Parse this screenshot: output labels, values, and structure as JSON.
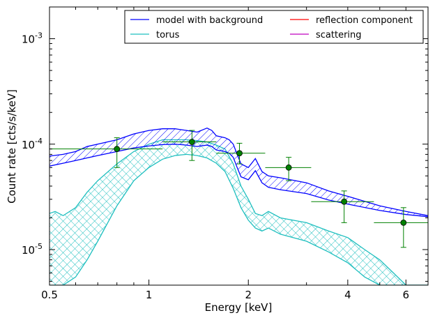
{
  "chart_data": {
    "type": "line",
    "xlabel": "Energy [keV]",
    "ylabel": "Count rate [cts/s/keV]",
    "x_scale": "log",
    "y_scale": "log",
    "xlim": [
      0.5,
      7.0
    ],
    "ylim": [
      4.6e-06,
      0.002
    ],
    "x_ticks": [
      {
        "value": 0.5,
        "label": "0.5"
      },
      {
        "value": 1,
        "label": "1"
      },
      {
        "value": 2,
        "label": "2"
      },
      {
        "value": 4,
        "label": "4"
      },
      {
        "value": 6,
        "label": "6"
      }
    ],
    "y_ticks": [
      {
        "value": 1e-05,
        "base": "10",
        "exp": "-5"
      },
      {
        "value": 0.0001,
        "base": "10",
        "exp": "-4"
      },
      {
        "value": 0.001,
        "base": "10",
        "exp": "-3"
      }
    ],
    "grid": false,
    "legend_position": "top-right",
    "legend_columns": 2,
    "colors": {
      "model": "#0000ff",
      "torus": "#1fbfbf",
      "reflection": "#ff0000",
      "scattering": "#bf00bf",
      "data": "#008000"
    },
    "series": [
      {
        "name": "model with background",
        "color": "#0000ff",
        "style": "band-hatched-diagonal",
        "x": [
          0.5,
          0.55,
          0.6,
          0.65,
          0.7,
          0.8,
          0.9,
          1.0,
          1.1,
          1.2,
          1.3,
          1.4,
          1.5,
          1.55,
          1.6,
          1.7,
          1.75,
          1.8,
          1.85,
          1.9,
          2.0,
          2.1,
          2.2,
          2.3,
          2.5,
          3.0,
          3.5,
          4.0,
          5.0,
          6.0,
          7.0
        ],
        "upper": [
          7.7e-05,
          8e-05,
          8.5e-05,
          9.5e-05,
          0.0001,
          0.00011,
          0.000125,
          0.000135,
          0.00014,
          0.00014,
          0.000135,
          0.00013,
          0.000142,
          0.000135,
          0.00012,
          0.000115,
          0.00011,
          0.0001,
          8e-05,
          6.5e-05,
          6e-05,
          7.3e-05,
          5.5e-05,
          5e-05,
          4.8e-05,
          4.3e-05,
          3.6e-05,
          3.2e-05,
          2.6e-05,
          2.3e-05,
          2.1e-05
        ],
        "lower": [
          6.2e-05,
          6.6e-05,
          7e-05,
          7.4e-05,
          7.8e-05,
          8.5e-05,
          9.2e-05,
          9.6e-05,
          9.9e-05,
          0.0001,
          9.8e-05,
          9.5e-05,
          9.8e-05,
          9.5e-05,
          8.8e-05,
          8.5e-05,
          8.2e-05,
          7.5e-05,
          6e-05,
          4.9e-05,
          4.6e-05,
          5.6e-05,
          4.3e-05,
          3.9e-05,
          3.7e-05,
          3.4e-05,
          2.95e-05,
          2.7e-05,
          2.35e-05,
          2.15e-05,
          2.05e-05
        ]
      },
      {
        "name": "torus",
        "color": "#1fbfbf",
        "style": "band-cross-hatched",
        "x": [
          0.5,
          0.52,
          0.55,
          0.6,
          0.65,
          0.7,
          0.8,
          0.9,
          1.0,
          1.1,
          1.2,
          1.3,
          1.4,
          1.5,
          1.6,
          1.7,
          1.8,
          1.9,
          2.0,
          2.1,
          2.2,
          2.3,
          2.5,
          3.0,
          3.5,
          4.0,
          4.5,
          5.0,
          5.5,
          6.0,
          7.0
        ],
        "upper": [
          2.2e-05,
          2.3e-05,
          2.1e-05,
          2.5e-05,
          3.5e-05,
          4.5e-05,
          6.5e-05,
          8.5e-05,
          0.0001,
          0.00011,
          0.00011,
          0.00011,
          0.000108,
          0.000105,
          9.8e-05,
          9e-05,
          6.5e-05,
          4e-05,
          3e-05,
          2.2e-05,
          2.1e-05,
          2.3e-05,
          2e-05,
          1.8e-05,
          1.5e-05,
          1.3e-05,
          1e-05,
          8e-06,
          6e-06,
          4.6e-06,
          4.6e-06
        ],
        "lower": [
          4.6e-06,
          4.6e-06,
          4.6e-06,
          5.5e-06,
          8e-06,
          1.2e-05,
          2.6e-05,
          4.5e-05,
          6e-05,
          7.2e-05,
          7.8e-05,
          8e-05,
          7.8e-05,
          7.4e-05,
          6.6e-05,
          5.5e-05,
          3.8e-05,
          2.5e-05,
          1.9e-05,
          1.6e-05,
          1.5e-05,
          1.6e-05,
          1.4e-05,
          1.2e-05,
          9.5e-06,
          7.5e-06,
          5.5e-06,
          4.6e-06,
          4.6e-06,
          4.6e-06,
          4.6e-06
        ]
      },
      {
        "name": "reflection component",
        "color": "#ff0000",
        "style": "line",
        "x": [],
        "y": []
      },
      {
        "name": "scattering",
        "color": "#bf00bf",
        "style": "line",
        "x": [],
        "y": []
      }
    ],
    "data_points": [
      {
        "x": 0.8,
        "y": 9e-05,
        "xlo": 0.5,
        "xhi": 1.1,
        "ylo": 6e-05,
        "yhi": 0.000115
      },
      {
        "x": 1.35,
        "y": 0.000105,
        "xlo": 1.1,
        "xhi": 1.6,
        "ylo": 7e-05,
        "yhi": 0.000135
      },
      {
        "x": 1.88,
        "y": 8.2e-05,
        "xlo": 1.6,
        "xhi": 2.25,
        "ylo": 6.5e-05,
        "yhi": 0.000102
      },
      {
        "x": 2.65,
        "y": 6e-05,
        "xlo": 2.25,
        "xhi": 3.1,
        "ylo": 4.5e-05,
        "yhi": 7.5e-05
      },
      {
        "x": 3.9,
        "y": 2.85e-05,
        "xlo": 3.1,
        "xhi": 4.8,
        "ylo": 1.8e-05,
        "yhi": 3.6e-05
      },
      {
        "x": 5.9,
        "y": 1.8e-05,
        "xlo": 4.8,
        "xhi": 7.0,
        "ylo": 1.05e-05,
        "yhi": 2.5e-05
      }
    ]
  }
}
